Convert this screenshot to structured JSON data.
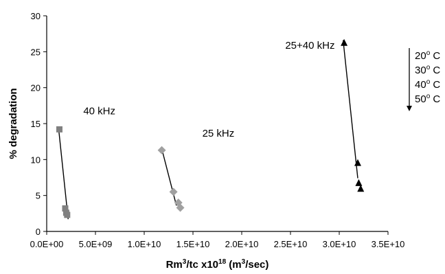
{
  "chart_data": {
    "type": "scatter",
    "xlim": [
      0,
      35000000000
    ],
    "ylim": [
      0,
      30
    ],
    "x_ticks": [
      0,
      5000000000,
      10000000000,
      15000000000,
      20000000000,
      25000000000,
      30000000000,
      35000000000
    ],
    "x_tick_labels": [
      "0.0E+00",
      "5.0E+09",
      "1.0E+10",
      "1.5E+10",
      "2.0E+10",
      "2.5E+10",
      "3.0E+10",
      "3.5E+10"
    ],
    "y_ticks": [
      0,
      5,
      10,
      15,
      20,
      25,
      30
    ],
    "y_tick_labels": [
      "0",
      "5",
      "10",
      "15",
      "20",
      "25",
      "30"
    ],
    "xlabel": {
      "base": "Rm",
      "sup1": "3",
      "mid": "/tc x10",
      "sup2": "18",
      "end": " (m",
      "sup3": "3",
      "tail": "/sec)"
    },
    "ylabel": "% degradation",
    "grid": false,
    "series": [
      {
        "name": "40 kHz",
        "marker": "square",
        "color": "#808080",
        "points": [
          [
            1300000000,
            14.2
          ],
          [
            1900000000,
            3.2
          ],
          [
            2000000000,
            2.6
          ],
          [
            2100000000,
            2.3
          ]
        ],
        "fit_line": [
          [
            1200000000,
            14.6
          ],
          [
            2200000000,
            1.7
          ]
        ]
      },
      {
        "name": "25 kHz",
        "marker": "diamond",
        "color": "#a0a0a0",
        "points": [
          [
            11800000000,
            11.3
          ],
          [
            13000000000,
            5.5
          ],
          [
            13500000000,
            4.0
          ],
          [
            13700000000,
            3.3
          ]
        ],
        "fit_line": [
          [
            11800000000,
            11.5
          ],
          [
            13300000000,
            3.6
          ]
        ]
      },
      {
        "name": "25+40 kHz",
        "marker": "triangle",
        "color": "#000000",
        "points": [
          [
            30500000000,
            26.2
          ],
          [
            31900000000,
            9.5
          ],
          [
            32000000000,
            6.7
          ],
          [
            32200000000,
            5.9
          ]
        ],
        "fit_line": [
          [
            30400000000,
            26.6
          ],
          [
            31900000000,
            7.4
          ]
        ]
      }
    ],
    "series_labels": [
      {
        "series": "40 kHz",
        "text": "40 kHz",
        "x": 5400000000,
        "y": 16.3
      },
      {
        "series": "25 kHz",
        "text": "25 kHz",
        "x": 17600000000,
        "y": 13.2
      },
      {
        "series": "25+40 kHz",
        "text": "25+40 kHz",
        "x": 27000000000,
        "y": 25.4
      }
    ],
    "temperature_legend": {
      "unit": "C",
      "items": [
        "20",
        "30",
        "40",
        "50"
      ],
      "arrow": "down"
    }
  }
}
